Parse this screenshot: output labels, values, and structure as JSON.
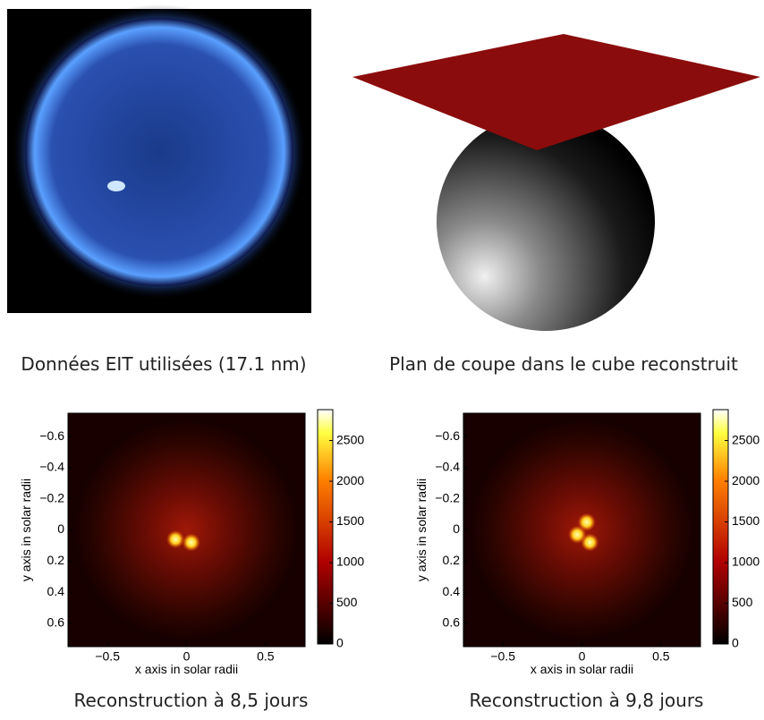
{
  "panels": [
    {
      "caption": "Données EIT utilisées (17.1 nm)"
    },
    {
      "caption": "Plan de coupe dans le cube reconstruit"
    },
    {
      "caption": "Reconstruction à 8,5 jours",
      "x_label": "x axis in solar radii",
      "y_label": "y axis in solar radii",
      "xlim": [
        -0.75,
        0.75
      ],
      "ylim": [
        -0.75,
        0.75
      ],
      "xticks": [
        {
          "value": -0.5,
          "label": "−0.5"
        },
        0,
        0.5
      ],
      "yticks": [
        {
          "value": -0.6,
          "label": "−0.6"
        },
        {
          "value": -0.4,
          "label": "−0.4"
        },
        {
          "value": -0.2,
          "label": "−0.2"
        },
        0,
        0.2,
        0.4,
        0.6
      ],
      "clim": [
        0,
        2880
      ],
      "colorbar_ticks": [
        0,
        500,
        1000,
        1500,
        2000,
        2500
      ]
    },
    {
      "caption": "Reconstruction à 9,8 jours",
      "x_label": "x axis in solar radii",
      "y_label": "y axis in solar radii",
      "xlim": [
        -0.75,
        0.75
      ],
      "ylim": [
        -0.75,
        0.75
      ],
      "xticks": [
        {
          "value": -0.5,
          "label": "−0.5"
        },
        0,
        0.5
      ],
      "yticks": [
        {
          "value": -0.6,
          "label": "−0.6"
        },
        {
          "value": -0.4,
          "label": "−0.4"
        },
        {
          "value": -0.2,
          "label": "−0.2"
        },
        0,
        0.2,
        0.4,
        0.6
      ],
      "clim": [
        0,
        2880
      ],
      "colorbar_ticks": [
        0,
        500,
        1000,
        1500,
        2000,
        2500
      ]
    }
  ]
}
